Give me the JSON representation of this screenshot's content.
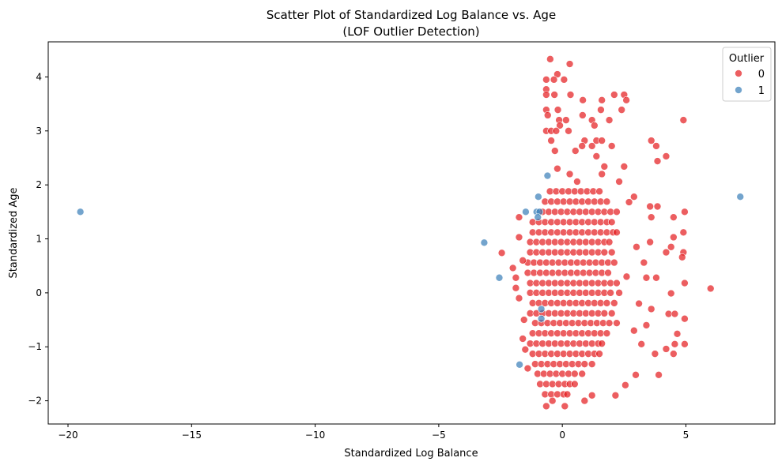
{
  "chart_data": {
    "type": "scatter",
    "title": "Scatter Plot of Standardized Log Balance vs. Age",
    "subtitle": "(LOF Outlier Detection)",
    "xlabel": "Standardized Log Balance",
    "ylabel": "Standardized Age",
    "xlim": [
      -20.8,
      8.6
    ],
    "ylim": [
      -2.43,
      4.65
    ],
    "xticks": [
      -20,
      -15,
      -10,
      -5,
      0,
      5
    ],
    "yticks": [
      -2,
      -1,
      0,
      1,
      2,
      3,
      4
    ],
    "xtick_labels": [
      "−20",
      "−15",
      "−10",
      "−5",
      "0",
      "5"
    ],
    "ytick_labels": [
      "−2",
      "−1",
      "0",
      "1",
      "2",
      "3",
      "4"
    ],
    "grid": false,
    "legend": {
      "title": "Outlier",
      "placement": "top-right",
      "entries": [
        "0",
        "1"
      ]
    },
    "series": [
      {
        "name": "0",
        "color": "#e41a1c",
        "core_rows": [
          {
            "y": 1.88,
            "x": [
              -0.5,
              -0.25,
              0,
              0.25,
              0.5,
              0.75,
              1,
              1.25,
              1.5
            ]
          },
          {
            "y": 1.69,
            "x": [
              -0.7,
              -0.45,
              -0.2,
              0.05,
              0.3,
              0.55,
              0.8,
              1.05,
              1.3,
              1.55,
              1.8
            ]
          },
          {
            "y": 1.5,
            "x": [
              -0.8,
              -0.55,
              -0.3,
              -0.05,
              0.2,
              0.45,
              0.7,
              0.95,
              1.2,
              1.45,
              1.7,
              1.95,
              2.2
            ]
          },
          {
            "y": 1.31,
            "x": [
              -1.2,
              -0.95,
              -0.7,
              -0.45,
              -0.2,
              0.05,
              0.3,
              0.55,
              0.8,
              1.05,
              1.3,
              1.55,
              1.8,
              2.0
            ]
          },
          {
            "y": 1.12,
            "x": [
              -1.2,
              -0.95,
              -0.7,
              -0.45,
              -0.2,
              0.05,
              0.3,
              0.55,
              0.8,
              1.05,
              1.3,
              1.55,
              1.8,
              2.05,
              2.2
            ]
          },
          {
            "y": 0.94,
            "x": [
              -1.3,
              -1.05,
              -0.8,
              -0.55,
              -0.3,
              -0.05,
              0.2,
              0.45,
              0.7,
              0.95,
              1.2,
              1.45,
              1.7,
              1.9
            ]
          },
          {
            "y": 0.75,
            "x": [
              -1.3,
              -1.05,
              -0.8,
              -0.55,
              -0.3,
              -0.05,
              0.2,
              0.45,
              0.7,
              0.95,
              1.2,
              1.45,
              1.7,
              2.0
            ]
          },
          {
            "y": 0.56,
            "x": [
              -1.4,
              -1.15,
              -0.9,
              -0.65,
              -0.4,
              -0.15,
              0.1,
              0.35,
              0.6,
              0.85,
              1.1,
              1.35,
              1.6,
              1.85,
              2.1
            ]
          },
          {
            "y": 0.37,
            "x": [
              -1.4,
              -1.15,
              -0.9,
              -0.65,
              -0.4,
              -0.15,
              0.1,
              0.35,
              0.6,
              0.85,
              1.1,
              1.35,
              1.6,
              1.85
            ]
          },
          {
            "y": 0.18,
            "x": [
              -1.3,
              -1.05,
              -0.8,
              -0.55,
              -0.3,
              -0.05,
              0.2,
              0.45,
              0.7,
              0.95,
              1.2,
              1.45,
              1.7,
              1.95,
              2.2
            ]
          },
          {
            "y": 0.0,
            "x": [
              -1.3,
              -1.05,
              -0.8,
              -0.55,
              -0.3,
              -0.05,
              0.2,
              0.45,
              0.7,
              0.95,
              1.2,
              1.45,
              1.7,
              1.95,
              2.3
            ]
          },
          {
            "y": -0.19,
            "x": [
              -1.2,
              -0.95,
              -0.7,
              -0.45,
              -0.2,
              0.05,
              0.3,
              0.55,
              0.8,
              1.05,
              1.3,
              1.55,
              1.8,
              2.1
            ]
          },
          {
            "y": -0.38,
            "x": [
              -1.3,
              -1.05,
              -0.8,
              -0.55,
              -0.3,
              -0.05,
              0.2,
              0.45,
              0.7,
              0.95,
              1.2,
              1.45,
              1.7,
              2.0
            ]
          },
          {
            "y": -0.56,
            "x": [
              -1.1,
              -0.85,
              -0.6,
              -0.35,
              -0.1,
              0.15,
              0.4,
              0.65,
              0.9,
              1.15,
              1.4,
              1.65,
              1.9,
              2.2
            ]
          },
          {
            "y": -0.75,
            "x": [
              -1.2,
              -0.95,
              -0.7,
              -0.45,
              -0.2,
              0.05,
              0.3,
              0.55,
              0.8,
              1.05,
              1.3,
              1.55,
              1.8
            ]
          },
          {
            "y": -0.94,
            "x": [
              -1.3,
              -1.05,
              -0.8,
              -0.55,
              -0.3,
              -0.05,
              0.2,
              0.45,
              0.7,
              0.95,
              1.2,
              1.45,
              1.6
            ]
          },
          {
            "y": -1.13,
            "x": [
              -1.2,
              -0.95,
              -0.7,
              -0.45,
              -0.2,
              0.05,
              0.3,
              0.55,
              0.8,
              1.05,
              1.3,
              1.5
            ]
          },
          {
            "y": -1.32,
            "x": [
              -1.1,
              -0.85,
              -0.6,
              -0.35,
              -0.1,
              0.15,
              0.4,
              0.65,
              0.9,
              1.2
            ]
          },
          {
            "y": -1.5,
            "x": [
              -1.0,
              -0.75,
              -0.5,
              -0.25,
              0,
              0.25,
              0.5,
              0.8
            ]
          },
          {
            "y": -1.69,
            "x": [
              -0.9,
              -0.65,
              -0.4,
              -0.15,
              0.1,
              0.3,
              0.5
            ]
          },
          {
            "y": -1.88,
            "x": [
              -0.7,
              -0.45,
              -0.2,
              0.05,
              0.2
            ]
          }
        ],
        "points": [
          [
            -0.49,
            4.33
          ],
          [
            0.3,
            4.24
          ],
          [
            -0.2,
            4.05
          ],
          [
            -0.65,
            3.95
          ],
          [
            -0.34,
            3.95
          ],
          [
            0.07,
            3.95
          ],
          [
            -0.65,
            3.77
          ],
          [
            -0.65,
            3.67
          ],
          [
            -0.32,
            3.67
          ],
          [
            0.33,
            3.67
          ],
          [
            2.1,
            3.67
          ],
          [
            2.5,
            3.67
          ],
          [
            0.83,
            3.57
          ],
          [
            1.6,
            3.57
          ],
          [
            2.59,
            3.57
          ],
          [
            -0.65,
            3.39
          ],
          [
            -0.18,
            3.39
          ],
          [
            1.56,
            3.39
          ],
          [
            2.4,
            3.39
          ],
          [
            -0.59,
            3.29
          ],
          [
            0.82,
            3.29
          ],
          [
            -0.13,
            3.2
          ],
          [
            0.15,
            3.2
          ],
          [
            1.2,
            3.2
          ],
          [
            1.9,
            3.2
          ],
          [
            4.9,
            3.2
          ],
          [
            -0.1,
            3.1
          ],
          [
            1.3,
            3.1
          ],
          [
            -0.65,
            3.0
          ],
          [
            -0.45,
            3.0
          ],
          [
            -0.25,
            3.0
          ],
          [
            0.25,
            3.0
          ],
          [
            1.38,
            2.82
          ],
          [
            0.9,
            2.82
          ],
          [
            1.6,
            2.82
          ],
          [
            3.6,
            2.82
          ],
          [
            -0.45,
            2.82
          ],
          [
            3.8,
            2.72
          ],
          [
            2.0,
            2.72
          ],
          [
            0.8,
            2.72
          ],
          [
            1.2,
            2.72
          ],
          [
            4.2,
            2.53
          ],
          [
            3.85,
            2.44
          ],
          [
            0.53,
            2.63
          ],
          [
            1.38,
            2.53
          ],
          [
            -0.3,
            2.63
          ],
          [
            2.5,
            2.34
          ],
          [
            1.7,
            2.34
          ],
          [
            1.6,
            2.2
          ],
          [
            -0.2,
            2.3
          ],
          [
            0.3,
            2.2
          ],
          [
            2.3,
            2.06
          ],
          [
            0.6,
            2.06
          ],
          [
            2.9,
            1.78
          ],
          [
            2.7,
            1.68
          ],
          [
            3.55,
            1.6
          ],
          [
            3.85,
            1.6
          ],
          [
            4.5,
            1.4
          ],
          [
            4.95,
            1.5
          ],
          [
            3.6,
            1.4
          ],
          [
            4.9,
            1.12
          ],
          [
            4.5,
            1.03
          ],
          [
            3.55,
            0.94
          ],
          [
            4.4,
            0.85
          ],
          [
            4.2,
            0.75
          ],
          [
            4.9,
            0.75
          ],
          [
            4.85,
            0.66
          ],
          [
            3.0,
            0.85
          ],
          [
            3.3,
            0.56
          ],
          [
            2.6,
            0.3
          ],
          [
            3.4,
            0.28
          ],
          [
            3.8,
            0.28
          ],
          [
            6.0,
            0.08
          ],
          [
            4.95,
            0.18
          ],
          [
            4.4,
            -0.01
          ],
          [
            3.1,
            -0.2
          ],
          [
            3.6,
            -0.3
          ],
          [
            4.95,
            -0.48
          ],
          [
            4.3,
            -0.39
          ],
          [
            4.55,
            -0.39
          ],
          [
            3.4,
            -0.6
          ],
          [
            2.9,
            -0.7
          ],
          [
            4.65,
            -0.76
          ],
          [
            4.95,
            -0.95
          ],
          [
            4.55,
            -0.95
          ],
          [
            4.2,
            -1.04
          ],
          [
            4.5,
            -1.13
          ],
          [
            3.75,
            -1.13
          ],
          [
            3.2,
            -0.95
          ],
          [
            3.9,
            -1.52
          ],
          [
            2.97,
            -1.52
          ],
          [
            2.55,
            -1.71
          ],
          [
            2.15,
            -1.9
          ],
          [
            1.2,
            -1.9
          ],
          [
            0.9,
            -2.0
          ],
          [
            -2.45,
            0.74
          ],
          [
            -2.0,
            0.46
          ],
          [
            -1.75,
            1.4
          ],
          [
            -1.75,
            1.03
          ],
          [
            -1.88,
            0.28
          ],
          [
            -1.88,
            0.09
          ],
          [
            -1.75,
            -0.1
          ],
          [
            -1.6,
            0.6
          ],
          [
            -1.55,
            -0.5
          ],
          [
            -1.6,
            -0.85
          ],
          [
            -1.5,
            -1.05
          ],
          [
            -1.4,
            -1.4
          ],
          [
            -0.65,
            -2.1
          ],
          [
            0.1,
            -2.1
          ],
          [
            -0.4,
            -2.0
          ]
        ]
      },
      {
        "name": "1",
        "color": "#377eb8",
        "points": [
          [
            -19.5,
            1.5
          ],
          [
            7.2,
            1.78
          ],
          [
            -3.16,
            0.93
          ],
          [
            -2.55,
            0.28
          ],
          [
            -1.73,
            -1.33
          ],
          [
            -1.48,
            1.5
          ],
          [
            -1.04,
            1.5
          ],
          [
            -0.92,
            1.5
          ],
          [
            -0.97,
            1.78
          ],
          [
            -0.6,
            2.17
          ],
          [
            -0.99,
            1.4
          ],
          [
            -0.85,
            -0.3
          ],
          [
            -0.85,
            -0.48
          ]
        ]
      }
    ]
  }
}
